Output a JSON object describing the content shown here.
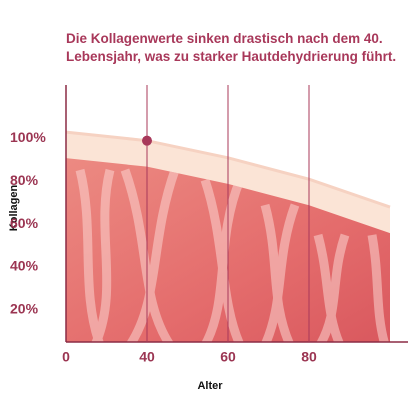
{
  "chart_data": {
    "type": "area",
    "title": "Die Kollagenwerte sinken drastisch nach dem 40. Lebensjahr, was zu starker Hautdehydrierung führt.",
    "x_label": "Alter",
    "y_label": "Kollagen",
    "categories": [
      "0",
      "40",
      "60",
      "80",
      null
    ],
    "values": [
      103,
      99,
      91,
      81,
      68
    ],
    "color": "#e8736f",
    "ylim": [
      5,
      125
    ],
    "yticks": [
      {
        "value": 20,
        "label": "20%"
      },
      {
        "value": 40,
        "label": "40%"
      },
      {
        "value": 60,
        "label": "60%"
      },
      {
        "value": 80,
        "label": "80%"
      },
      {
        "value": 100,
        "label": "100%"
      }
    ],
    "xgrid": true,
    "marker_index": 1,
    "marker_color": "#a8385a"
  }
}
